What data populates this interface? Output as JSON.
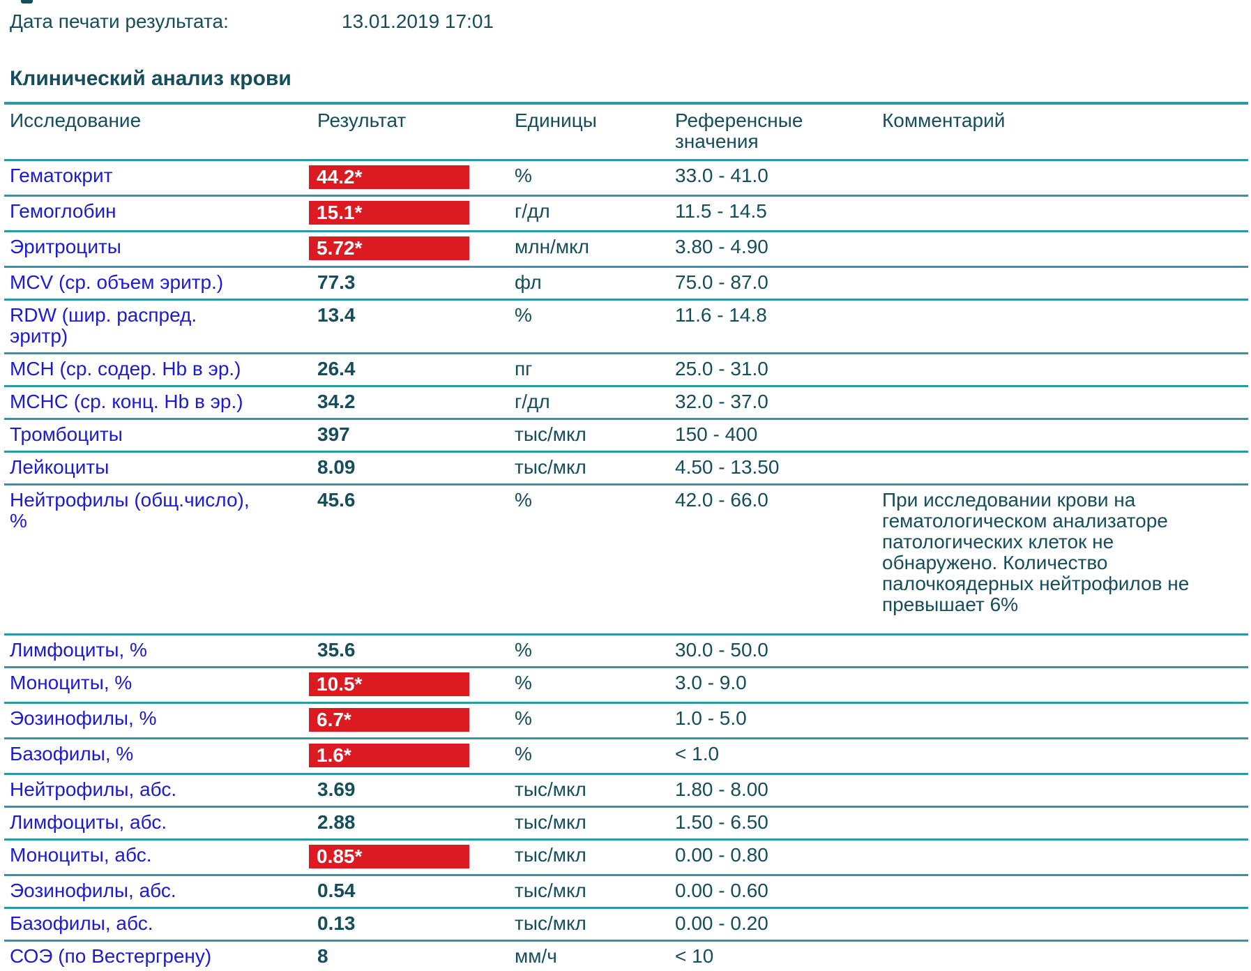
{
  "page": {
    "print_date_label": "Дата печати результата:",
    "print_date_value": "13.01.2019 17:01",
    "section_title": "Клинический анализ крови"
  },
  "colors": {
    "flag_background": "#dc1a21",
    "test_name_blue": "#1d1ad4",
    "text_teal": "#164d5b",
    "rule_teal": "#2d98a6",
    "rule_bottom_dark": "#0d6878"
  },
  "table": {
    "headers": {
      "name": "Исследование",
      "result": "Результат",
      "units": "Единицы",
      "reference": "Референсные\nзначения",
      "comment": "Комментарий"
    },
    "rows": [
      {
        "name": "Гематокрит",
        "result": "44.2*",
        "flagged": true,
        "units": "%",
        "reference": "33.0 - 41.0",
        "comment": ""
      },
      {
        "name": "Гемоглобин",
        "result": "15.1*",
        "flagged": true,
        "units": "г/дл",
        "reference": "11.5 - 14.5",
        "comment": ""
      },
      {
        "name": "Эритроциты",
        "result": "5.72*",
        "flagged": true,
        "units": "млн/мкл",
        "reference": "3.80 - 4.90",
        "comment": ""
      },
      {
        "name": "MCV (ср. объем эритр.)",
        "result": "77.3",
        "flagged": false,
        "units": "фл",
        "reference": "75.0 - 87.0",
        "comment": ""
      },
      {
        "name": "RDW (шир. распред.\nэритр)",
        "result": "13.4",
        "flagged": false,
        "units": "%",
        "reference": "11.6 - 14.8",
        "comment": ""
      },
      {
        "name": "MCH (ср. содер. Hb в эр.)",
        "result": "26.4",
        "flagged": false,
        "units": "пг",
        "reference": "25.0 - 31.0",
        "comment": ""
      },
      {
        "name": "MCHC (ср. конц. Hb в эр.)",
        "result": "34.2",
        "flagged": false,
        "units": "г/дл",
        "reference": "32.0 - 37.0",
        "comment": ""
      },
      {
        "name": "Тромбоциты",
        "result": "397",
        "flagged": false,
        "units": "тыс/мкл",
        "reference": "150 - 400",
        "comment": ""
      },
      {
        "name": "Лейкоциты",
        "result": "8.09",
        "flagged": false,
        "units": "тыс/мкл",
        "reference": "4.50 - 13.50",
        "comment": ""
      },
      {
        "name": "Нейтрофилы (общ.число),\n%",
        "result": "45.6",
        "flagged": false,
        "units": "%",
        "reference": "42.0 - 66.0",
        "comment": "При исследовании крови на\nгематологическом анализаторе\nпатологических клеток не\nобнаружено. Количество\nпалочкоядерных нейтрофилов не\nпревышает 6%"
      },
      {
        "name": "Лимфоциты, %",
        "result": "35.6",
        "flagged": false,
        "units": "%",
        "reference": "30.0 - 50.0",
        "comment": ""
      },
      {
        "name": "Моноциты, %",
        "result": "10.5*",
        "flagged": true,
        "units": "%",
        "reference": "3.0 - 9.0",
        "comment": ""
      },
      {
        "name": "Эозинофилы, %",
        "result": "6.7*",
        "flagged": true,
        "units": "%",
        "reference": "1.0 - 5.0",
        "comment": ""
      },
      {
        "name": "Базофилы, %",
        "result": "1.6*",
        "flagged": true,
        "units": "%",
        "reference": "< 1.0",
        "comment": ""
      },
      {
        "name": "Нейтрофилы, абс.",
        "result": "3.69",
        "flagged": false,
        "units": "тыс/мкл",
        "reference": "1.80 - 8.00",
        "comment": ""
      },
      {
        "name": "Лимфоциты, абс.",
        "result": "2.88",
        "flagged": false,
        "units": "тыс/мкл",
        "reference": "1.50 - 6.50",
        "comment": ""
      },
      {
        "name": "Моноциты, абс.",
        "result": "0.85*",
        "flagged": true,
        "units": "тыс/мкл",
        "reference": "0.00 - 0.80",
        "comment": ""
      },
      {
        "name": "Эозинофилы, абс.",
        "result": "0.54",
        "flagged": false,
        "units": "тыс/мкл",
        "reference": "0.00 - 0.60",
        "comment": ""
      },
      {
        "name": "Базофилы, абс.",
        "result": "0.13",
        "flagged": false,
        "units": "тыс/мкл",
        "reference": "0.00 - 0.20",
        "comment": ""
      },
      {
        "name": "СОЭ (по Вестергрену)",
        "result": "8",
        "flagged": false,
        "units": "мм/ч",
        "reference": "< 10",
        "comment": ""
      }
    ]
  }
}
